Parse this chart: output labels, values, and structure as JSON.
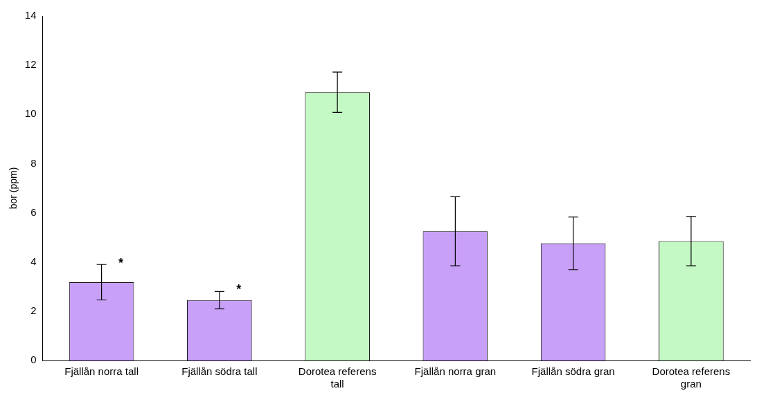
{
  "chart_data": {
    "type": "bar",
    "ylabel": "bor (ppm)",
    "categories": [
      "Fjällån norra tall",
      "Fjällån södra tall",
      "Dorotea referens tall",
      "Fjällån norra gran",
      "Fjällån södra gran",
      "Dorotea referens gran"
    ],
    "values": [
      3.18,
      2.45,
      10.9,
      5.25,
      4.76,
      4.85
    ],
    "colors": [
      "#c8a0f8",
      "#c8a0f8",
      "#c4f8c4",
      "#c8a0f8",
      "#c8a0f8",
      "#c4f8c4"
    ],
    "errors": [
      0.72,
      0.35,
      0.82,
      1.4,
      1.07,
      1.0
    ],
    "ylim": [
      0,
      14
    ],
    "yticks": [
      0,
      2,
      4,
      6,
      8,
      10,
      12,
      14
    ],
    "grid": false,
    "legend": false,
    "annotations": [
      {
        "text": "*",
        "x": "Fjällån norra tall",
        "y": 3.9
      },
      {
        "text": "*",
        "x": "Fjällån södra tall",
        "y": 2.83
      }
    ]
  }
}
